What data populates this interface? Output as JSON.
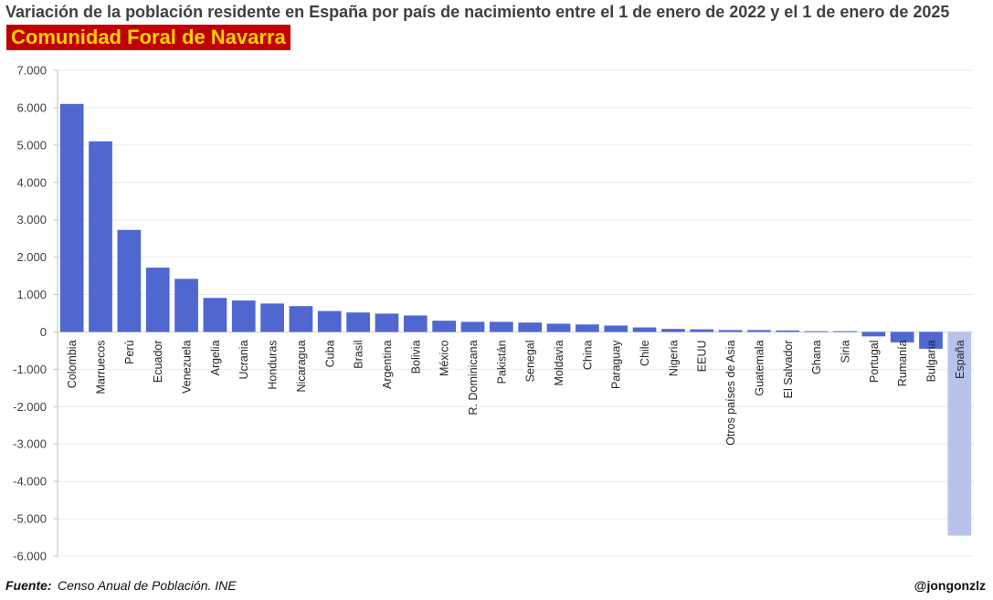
{
  "chart_data": {
    "type": "bar",
    "title": "Variación de la población residente en España por país de nacimiento entre el 1 de enero de 2022 y el 1 de enero de 2025",
    "subtitle": "Comunidad Foral de Navarra",
    "xlabel": "",
    "ylabel": "",
    "ylim": [
      -6000,
      7000
    ],
    "yticks": [
      7000,
      6000,
      5000,
      4000,
      3000,
      2000,
      1000,
      0,
      -1000,
      -2000,
      -3000,
      -4000,
      -5000,
      -6000
    ],
    "ytick_labels": [
      "7.000",
      "6.000",
      "5.000",
      "4.000",
      "3.000",
      "2.000",
      "1.000",
      "0",
      "-1.000",
      "-2.000",
      "-3.000",
      "-4.000",
      "-5.000",
      "-6.000"
    ],
    "grid": true,
    "categories": [
      "Colombia",
      "Marruecos",
      "Perú",
      "Ecuador",
      "Venezuela",
      "Argelia",
      "Ucrania",
      "Honduras",
      "Nicaragua",
      "Cuba",
      "Brasil",
      "Argentina",
      "Bolivia",
      "México",
      "R. Dominicana",
      "Pakistán",
      "Senegal",
      "Moldavia",
      "China",
      "Paraguay",
      "Chile",
      "Nigeria",
      "EEUU",
      "Otros países de Asia",
      "Guatemala",
      "El Salvador",
      "Ghana",
      "Siria",
      "Portugal",
      "Rumanía",
      "Bulgaria",
      "España"
    ],
    "values": [
      6100,
      5100,
      2730,
      1720,
      1420,
      910,
      840,
      760,
      690,
      560,
      520,
      490,
      440,
      300,
      270,
      270,
      250,
      220,
      200,
      170,
      120,
      80,
      70,
      50,
      50,
      40,
      20,
      20,
      -120,
      -280,
      -450,
      -5450
    ],
    "colors": {
      "default": "#4f67cf",
      "highlight": "#b8c3ec"
    },
    "highlight_category": "España"
  },
  "footer": {
    "source_label": "Fuente:",
    "source_text": "Censo Anual de Población. INE",
    "credit": "@jongonzlz"
  }
}
